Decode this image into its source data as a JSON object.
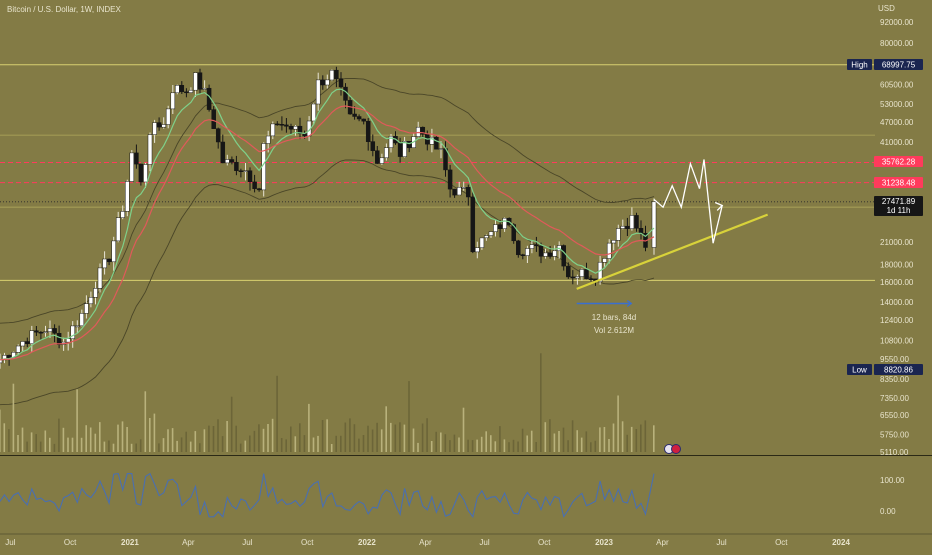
{
  "title": "Bitcoin / U.S. Dollar, 1W, INDEX",
  "currency": "USD",
  "colors": {
    "background": "#837b45",
    "up_candle": "#ffffff",
    "down_candle": "#161616",
    "ema_fast": "#7fd08a",
    "ema_slow": "#e05a5a",
    "channel": "#4a4628",
    "level_line": "#d8d070",
    "dashed_level": "#ff3b5c",
    "badge_navy": "#1a2550",
    "badge_red": "#ff3b5c",
    "trendline": "#d8d23a",
    "oscillator": "#4a6fb0",
    "range_tool": "#3a6fd0"
  },
  "price_axis": {
    "scale": "log",
    "ticks": [
      "92000.00",
      "80000.00",
      "60500.00",
      "53000.00",
      "47000.00",
      "41000.00",
      "21000.00",
      "18000.00",
      "16000.00",
      "14000.00",
      "12400.00",
      "10800.00",
      "9550.00",
      "8350.00",
      "7350.00",
      "6550.00",
      "5750.00",
      "5110.00"
    ]
  },
  "badges": {
    "high_label": "High",
    "high_value": "68997.75",
    "low_label": "Low",
    "low_value": "8820.86",
    "level_1": "35762.28",
    "level_2": "31238.48",
    "current_price": "27471.89",
    "countdown": "1d 11h"
  },
  "measurement": {
    "bars": "12 bars, 84d",
    "volume": "Vol 2.612M"
  },
  "oscillator_axis": {
    "ticks": [
      "100.00",
      "0.00"
    ]
  },
  "time_axis": {
    "labels": [
      "Jul",
      "Oct",
      "2021",
      "Apr",
      "Jul",
      "Oct",
      "2022",
      "Apr",
      "Jul",
      "Oct",
      "2023",
      "Apr",
      "Jul",
      "Oct",
      "2024"
    ]
  },
  "chart_data": {
    "type": "candlestick",
    "title": "Bitcoin / U.S. Dollar, 1W, INDEX",
    "yscale": "log",
    "ylim": [
      5110,
      92000
    ],
    "xlim": [
      "2020-06-15",
      "2024-03-01"
    ],
    "horizontal_levels": [
      68997.75,
      35762.28,
      31238.48,
      43000,
      27471.89,
      26500,
      16200
    ],
    "trendline": {
      "from": [
        "2022-11-20",
        15300
      ],
      "to": [
        "2023-09-10",
        25200
      ]
    },
    "projection_path": [
      [
        "2023-03-19",
        27900
      ],
      [
        "2023-04-02",
        26500
      ],
      [
        "2023-04-16",
        30600
      ],
      [
        "2023-04-30",
        26500
      ],
      [
        "2023-05-14",
        35500
      ],
      [
        "2023-05-28",
        30000
      ],
      [
        "2023-06-04",
        36500
      ],
      [
        "2023-06-18",
        20800
      ],
      [
        "2023-07-02",
        26800
      ]
    ],
    "weekly_close_anchors": [
      [
        "2020-06-15",
        9500
      ],
      [
        "2020-07-27",
        11000
      ],
      [
        "2020-08-24",
        11700
      ],
      [
        "2020-09-21",
        10700
      ],
      [
        "2020-10-19",
        12900
      ],
      [
        "2020-11-09",
        16000
      ],
      [
        "2020-11-30",
        19000
      ],
      [
        "2020-12-21",
        26500
      ],
      [
        "2021-01-04",
        38000
      ],
      [
        "2021-01-18",
        32000
      ],
      [
        "2021-02-08",
        47000
      ],
      [
        "2021-02-22",
        46000
      ],
      [
        "2021-03-08",
        59000
      ],
      [
        "2021-03-29",
        58000
      ],
      [
        "2021-04-12",
        63000
      ],
      [
        "2021-04-26",
        57000
      ],
      [
        "2021-05-10",
        46000
      ],
      [
        "2021-05-24",
        36000
      ],
      [
        "2021-06-14",
        35000
      ],
      [
        "2021-06-28",
        34000
      ],
      [
        "2021-07-19",
        30000
      ],
      [
        "2021-07-26",
        40000
      ],
      [
        "2021-08-16",
        47000
      ],
      [
        "2021-09-06",
        45000
      ],
      [
        "2021-09-27",
        43000
      ],
      [
        "2021-10-18",
        61000
      ],
      [
        "2021-11-08",
        65000
      ],
      [
        "2021-11-22",
        57000
      ],
      [
        "2021-12-06",
        48000
      ],
      [
        "2021-12-27",
        47000
      ],
      [
        "2022-01-17",
        36000
      ],
      [
        "2022-02-07",
        42000
      ],
      [
        "2022-02-21",
        38000
      ],
      [
        "2022-03-21",
        45000
      ],
      [
        "2022-04-04",
        42000
      ],
      [
        "2022-04-25",
        38000
      ],
      [
        "2022-05-09",
        30000
      ],
      [
        "2022-06-06",
        29000
      ],
      [
        "2022-06-13",
        20500
      ],
      [
        "2022-07-04",
        21500
      ],
      [
        "2022-07-25",
        23500
      ],
      [
        "2022-08-08",
        24300
      ],
      [
        "2022-08-22",
        20000
      ],
      [
        "2022-09-12",
        20000
      ],
      [
        "2022-10-03",
        19500
      ],
      [
        "2022-10-24",
        20500
      ],
      [
        "2022-11-07",
        16800
      ],
      [
        "2022-11-28",
        17000
      ],
      [
        "2022-12-19",
        16800
      ],
      [
        "2023-01-09",
        21000
      ],
      [
        "2023-01-23",
        23000
      ],
      [
        "2023-02-13",
        24500
      ],
      [
        "2023-03-06",
        20500
      ],
      [
        "2023-03-13",
        26900
      ],
      [
        "2023-03-19",
        27471.89
      ]
    ],
    "annotations": [
      "12 bars, 84d",
      "Vol 2.612M"
    ]
  }
}
